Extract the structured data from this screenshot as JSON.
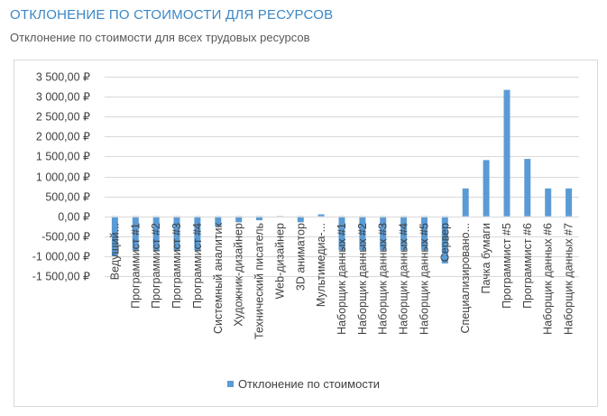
{
  "report": {
    "title": "ОТКЛОНЕНИЕ ПО СТОИМОСТИ ДЛЯ РЕСУРСОВ",
    "subtitle": "Отклонение по стоимости для всех трудовых ресурсов"
  },
  "colors": {
    "bar": "#5b9bd5",
    "grid": "#d9d9d9",
    "text": "#404040"
  },
  "chart_data": {
    "type": "bar",
    "title": "",
    "xlabel": "",
    "ylabel": "",
    "ylim": [
      -1500,
      3500
    ],
    "y_ticks": [
      3500,
      3000,
      2500,
      2000,
      1500,
      1000,
      500,
      0,
      -500,
      -1000,
      -1500
    ],
    "y_tick_labels": [
      "3 500,00 ₽",
      "3 000,00 ₽",
      "2 500,00 ₽",
      "2 000,00 ₽",
      "1 500,00 ₽",
      "1 000,00 ₽",
      "500,00 ₽",
      "0,00 ₽",
      "-500,00 ₽",
      "-1 000,00 ₽",
      "-1 500,00 ₽"
    ],
    "grid": true,
    "legend_position": "bottom",
    "categories": [
      "Ведущий...",
      "Программист #1",
      "Программист #2",
      "Программист #3",
      "Программист #4",
      "Системный аналитик",
      "Художник-дизайнер",
      "Технический писатель",
      "Web-дизайнер",
      "3D аниматор",
      "Мультимедиа-...",
      "Наборщик данных #1",
      "Наборщик данных #2",
      "Наборщик данных #3",
      "Наборщик данных #4",
      "Наборщик данных #5",
      "Сервер",
      "Специализировано...",
      "Пачка бумаги",
      "Программист #5",
      "Программист #6",
      "Наборщик данных #6",
      "Наборщик данных #7"
    ],
    "series": [
      {
        "name": "Отклонение по стоимости",
        "values": [
          -1000,
          -850,
          -850,
          -850,
          -850,
          -250,
          -150,
          -100,
          -30,
          -150,
          50,
          -850,
          -850,
          -850,
          -850,
          -850,
          -1180,
          700,
          1410,
          3170,
          1440,
          700,
          700
        ]
      }
    ]
  }
}
